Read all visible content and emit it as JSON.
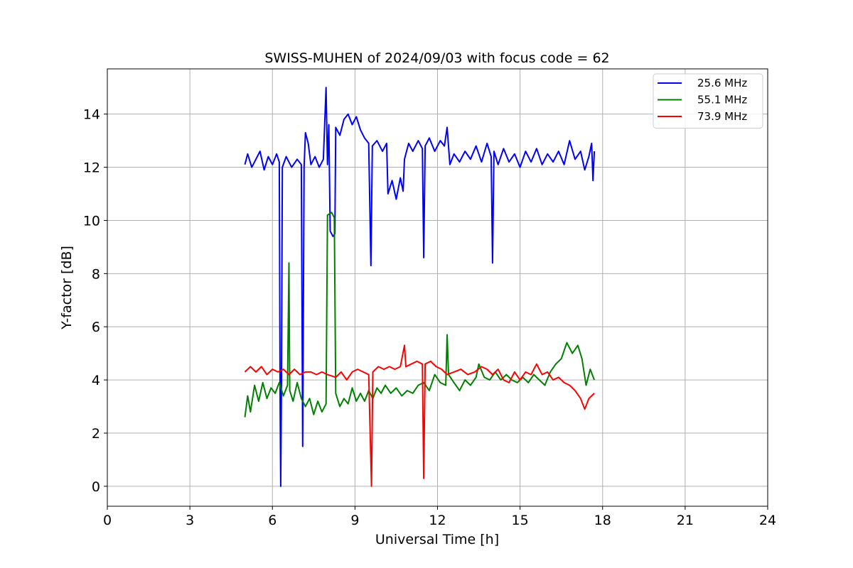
{
  "chart_data": {
    "type": "line",
    "title": "SWISS-MUHEN of 2024/09/03 with focus code = 62",
    "xlabel": "Universal Time [h]",
    "ylabel": "Y-factor [dB]",
    "xlim": [
      0,
      24
    ],
    "ylim": [
      -0.75,
      15.7
    ],
    "xticks": [
      0,
      3,
      6,
      9,
      12,
      15,
      18,
      21,
      24
    ],
    "xtick_labels": [
      "0",
      "3",
      "6",
      "9",
      "12",
      "15",
      "18",
      "21",
      "24"
    ],
    "yticks": [
      0,
      2,
      4,
      6,
      8,
      10,
      12,
      14
    ],
    "ytick_labels": [
      "0",
      "2",
      "4",
      "6",
      "8",
      "10",
      "12",
      "14"
    ],
    "grid": true,
    "legend_position": "top-right",
    "series": [
      {
        "name": "25.6 MHz",
        "color": "#0000ff",
        "points": [
          [
            5.0,
            12.1
          ],
          [
            5.1,
            12.5
          ],
          [
            5.25,
            12.0
          ],
          [
            5.4,
            12.3
          ],
          [
            5.55,
            12.6
          ],
          [
            5.7,
            11.9
          ],
          [
            5.85,
            12.4
          ],
          [
            6.0,
            12.1
          ],
          [
            6.15,
            12.5
          ],
          [
            6.25,
            12.2
          ],
          [
            6.28,
            3.0
          ],
          [
            6.3,
            0.0
          ],
          [
            6.33,
            4.0
          ],
          [
            6.36,
            12.0
          ],
          [
            6.5,
            12.4
          ],
          [
            6.7,
            12.0
          ],
          [
            6.9,
            12.3
          ],
          [
            7.05,
            12.1
          ],
          [
            7.1,
            1.5
          ],
          [
            7.15,
            12.0
          ],
          [
            7.2,
            13.3
          ],
          [
            7.3,
            12.9
          ],
          [
            7.4,
            12.1
          ],
          [
            7.55,
            12.4
          ],
          [
            7.7,
            12.0
          ],
          [
            7.85,
            12.3
          ],
          [
            7.95,
            15.0
          ],
          [
            8.0,
            12.1
          ],
          [
            8.05,
            13.6
          ],
          [
            8.1,
            9.6
          ],
          [
            8.2,
            9.4
          ],
          [
            8.27,
            9.5
          ],
          [
            8.3,
            13.5
          ],
          [
            8.45,
            13.2
          ],
          [
            8.6,
            13.8
          ],
          [
            8.75,
            14.0
          ],
          [
            8.9,
            13.6
          ],
          [
            9.05,
            13.9
          ],
          [
            9.2,
            13.4
          ],
          [
            9.35,
            13.1
          ],
          [
            9.5,
            12.9
          ],
          [
            9.58,
            8.3
          ],
          [
            9.63,
            12.8
          ],
          [
            9.8,
            13.0
          ],
          [
            10.0,
            12.6
          ],
          [
            10.15,
            12.9
          ],
          [
            10.2,
            11.0
          ],
          [
            10.35,
            11.5
          ],
          [
            10.5,
            10.8
          ],
          [
            10.65,
            11.6
          ],
          [
            10.75,
            11.1
          ],
          [
            10.8,
            12.3
          ],
          [
            10.95,
            12.9
          ],
          [
            11.1,
            12.6
          ],
          [
            11.3,
            13.0
          ],
          [
            11.45,
            12.7
          ],
          [
            11.5,
            8.6
          ],
          [
            11.55,
            12.8
          ],
          [
            11.7,
            13.1
          ],
          [
            11.9,
            12.6
          ],
          [
            12.1,
            13.0
          ],
          [
            12.25,
            12.8
          ],
          [
            12.35,
            13.5
          ],
          [
            12.45,
            12.1
          ],
          [
            12.6,
            12.5
          ],
          [
            12.8,
            12.2
          ],
          [
            13.0,
            12.6
          ],
          [
            13.2,
            12.3
          ],
          [
            13.4,
            12.8
          ],
          [
            13.6,
            12.2
          ],
          [
            13.8,
            12.9
          ],
          [
            13.95,
            12.4
          ],
          [
            14.0,
            8.4
          ],
          [
            14.05,
            12.6
          ],
          [
            14.2,
            12.1
          ],
          [
            14.4,
            12.7
          ],
          [
            14.6,
            12.2
          ],
          [
            14.8,
            12.5
          ],
          [
            15.0,
            12.0
          ],
          [
            15.2,
            12.6
          ],
          [
            15.4,
            12.2
          ],
          [
            15.6,
            12.7
          ],
          [
            15.8,
            12.1
          ],
          [
            16.0,
            12.5
          ],
          [
            16.2,
            12.2
          ],
          [
            16.4,
            12.6
          ],
          [
            16.6,
            12.1
          ],
          [
            16.8,
            13.0
          ],
          [
            17.0,
            12.3
          ],
          [
            17.2,
            12.6
          ],
          [
            17.35,
            11.9
          ],
          [
            17.5,
            12.4
          ],
          [
            17.6,
            12.9
          ],
          [
            17.65,
            11.5
          ],
          [
            17.7,
            12.6
          ]
        ]
      },
      {
        "name": "55.1 MHz",
        "color": "#008000",
        "points": [
          [
            5.0,
            2.6
          ],
          [
            5.1,
            3.4
          ],
          [
            5.2,
            2.8
          ],
          [
            5.35,
            3.8
          ],
          [
            5.5,
            3.2
          ],
          [
            5.65,
            3.9
          ],
          [
            5.8,
            3.3
          ],
          [
            5.95,
            3.7
          ],
          [
            6.1,
            3.5
          ],
          [
            6.25,
            3.9
          ],
          [
            6.4,
            3.4
          ],
          [
            6.55,
            3.8
          ],
          [
            6.6,
            8.4
          ],
          [
            6.63,
            3.6
          ],
          [
            6.75,
            3.2
          ],
          [
            6.9,
            3.9
          ],
          [
            7.05,
            3.3
          ],
          [
            7.2,
            3.0
          ],
          [
            7.35,
            3.3
          ],
          [
            7.5,
            2.7
          ],
          [
            7.65,
            3.2
          ],
          [
            7.8,
            2.8
          ],
          [
            7.95,
            3.1
          ],
          [
            8.0,
            10.2
          ],
          [
            8.15,
            10.3
          ],
          [
            8.25,
            10.1
          ],
          [
            8.3,
            3.5
          ],
          [
            8.45,
            3.0
          ],
          [
            8.6,
            3.3
          ],
          [
            8.75,
            3.1
          ],
          [
            8.9,
            3.7
          ],
          [
            9.05,
            3.2
          ],
          [
            9.2,
            3.5
          ],
          [
            9.35,
            3.2
          ],
          [
            9.5,
            3.6
          ],
          [
            9.65,
            3.3
          ],
          [
            9.8,
            3.7
          ],
          [
            9.95,
            3.5
          ],
          [
            10.1,
            3.8
          ],
          [
            10.3,
            3.5
          ],
          [
            10.5,
            3.7
          ],
          [
            10.7,
            3.4
          ],
          [
            10.9,
            3.6
          ],
          [
            11.1,
            3.5
          ],
          [
            11.3,
            3.8
          ],
          [
            11.5,
            3.9
          ],
          [
            11.7,
            3.6
          ],
          [
            11.9,
            4.2
          ],
          [
            12.1,
            3.9
          ],
          [
            12.3,
            3.8
          ],
          [
            12.35,
            5.7
          ],
          [
            12.4,
            4.2
          ],
          [
            12.6,
            3.9
          ],
          [
            12.8,
            3.6
          ],
          [
            13.0,
            4.0
          ],
          [
            13.2,
            3.8
          ],
          [
            13.4,
            4.1
          ],
          [
            13.5,
            4.6
          ],
          [
            13.7,
            4.1
          ],
          [
            13.9,
            4.0
          ],
          [
            14.1,
            4.3
          ],
          [
            14.3,
            4.0
          ],
          [
            14.5,
            4.2
          ],
          [
            14.7,
            4.0
          ],
          [
            14.9,
            3.9
          ],
          [
            15.1,
            4.1
          ],
          [
            15.3,
            3.9
          ],
          [
            15.5,
            4.2
          ],
          [
            15.7,
            4.0
          ],
          [
            15.9,
            3.8
          ],
          [
            16.1,
            4.3
          ],
          [
            16.3,
            4.6
          ],
          [
            16.5,
            4.8
          ],
          [
            16.7,
            5.4
          ],
          [
            16.9,
            5.0
          ],
          [
            17.1,
            5.3
          ],
          [
            17.25,
            4.8
          ],
          [
            17.4,
            3.8
          ],
          [
            17.55,
            4.4
          ],
          [
            17.7,
            4.0
          ]
        ]
      },
      {
        "name": "73.9 MHz",
        "color": "#ff0000",
        "points": [
          [
            5.0,
            4.3
          ],
          [
            5.2,
            4.5
          ],
          [
            5.4,
            4.3
          ],
          [
            5.6,
            4.5
          ],
          [
            5.8,
            4.2
          ],
          [
            6.0,
            4.4
          ],
          [
            6.2,
            4.3
          ],
          [
            6.4,
            4.4
          ],
          [
            6.6,
            4.2
          ],
          [
            6.8,
            4.4
          ],
          [
            7.0,
            4.2
          ],
          [
            7.2,
            4.3
          ],
          [
            7.4,
            4.3
          ],
          [
            7.6,
            4.2
          ],
          [
            7.8,
            4.3
          ],
          [
            8.0,
            4.2
          ],
          [
            8.3,
            4.1
          ],
          [
            8.5,
            4.3
          ],
          [
            8.7,
            4.0
          ],
          [
            8.9,
            4.3
          ],
          [
            9.1,
            4.4
          ],
          [
            9.3,
            4.3
          ],
          [
            9.5,
            4.2
          ],
          [
            9.6,
            0.0
          ],
          [
            9.65,
            4.3
          ],
          [
            9.85,
            4.5
          ],
          [
            10.05,
            4.4
          ],
          [
            10.25,
            4.5
          ],
          [
            10.45,
            4.4
          ],
          [
            10.65,
            4.5
          ],
          [
            10.8,
            5.3
          ],
          [
            10.85,
            4.5
          ],
          [
            11.05,
            4.6
          ],
          [
            11.25,
            4.7
          ],
          [
            11.45,
            4.6
          ],
          [
            11.5,
            0.3
          ],
          [
            11.55,
            4.6
          ],
          [
            11.75,
            4.7
          ],
          [
            11.95,
            4.5
          ],
          [
            12.15,
            4.4
          ],
          [
            12.35,
            4.2
          ],
          [
            12.6,
            4.3
          ],
          [
            12.85,
            4.4
          ],
          [
            13.1,
            4.2
          ],
          [
            13.35,
            4.3
          ],
          [
            13.6,
            4.5
          ],
          [
            13.8,
            4.4
          ],
          [
            14.0,
            4.2
          ],
          [
            14.2,
            4.4
          ],
          [
            14.4,
            4.0
          ],
          [
            14.6,
            3.9
          ],
          [
            14.8,
            4.3
          ],
          [
            15.0,
            4.0
          ],
          [
            15.2,
            4.3
          ],
          [
            15.4,
            4.2
          ],
          [
            15.6,
            4.6
          ],
          [
            15.8,
            4.2
          ],
          [
            16.0,
            4.3
          ],
          [
            16.2,
            4.0
          ],
          [
            16.4,
            4.1
          ],
          [
            16.6,
            3.9
          ],
          [
            16.8,
            3.8
          ],
          [
            17.0,
            3.6
          ],
          [
            17.2,
            3.3
          ],
          [
            17.35,
            2.9
          ],
          [
            17.5,
            3.3
          ],
          [
            17.7,
            3.5
          ]
        ]
      }
    ]
  }
}
